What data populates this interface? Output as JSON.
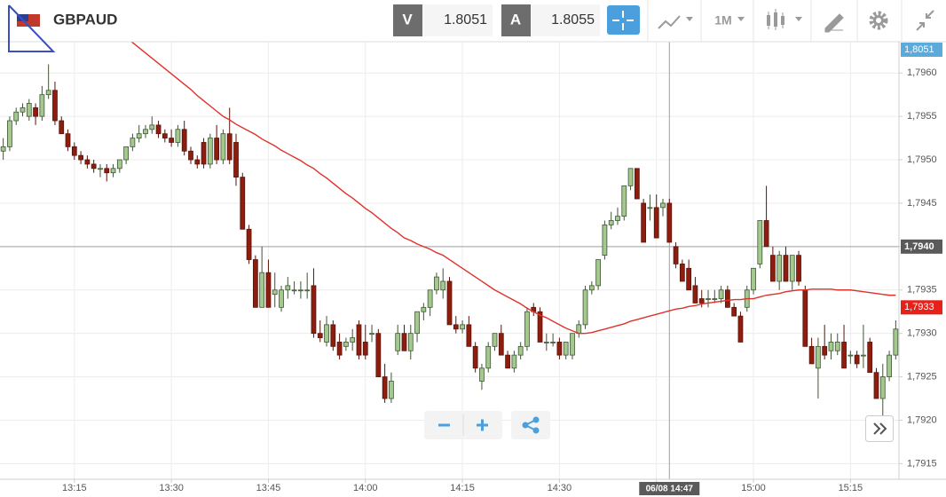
{
  "header": {
    "symbol": "GBPAUD",
    "bid_label": "V",
    "bid": "1.8051",
    "ask_label": "A",
    "ask": "1.8055",
    "timeframe": "1M"
  },
  "chart_data": {
    "type": "candlestick",
    "up_color": "#a3c98f",
    "down_color": "#8c1d0f",
    "grid": true,
    "xlim": [
      -0.5,
      138.5
    ],
    "xticks": [
      {
        "value": 11,
        "label": "13:15"
      },
      {
        "value": 26,
        "label": "13:30"
      },
      {
        "value": 41,
        "label": "13:45"
      },
      {
        "value": 56,
        "label": "14:00"
      },
      {
        "value": 71,
        "label": "14:15"
      },
      {
        "value": 86,
        "label": "14:30"
      },
      {
        "value": 101,
        "label": "14:45"
      },
      {
        "value": 116,
        "label": "15:00"
      },
      {
        "value": 131,
        "label": "15:15"
      }
    ],
    "ylim": [
      1.79132,
      1.79636
    ],
    "yticks": [
      {
        "value": 1.7915,
        "label": "1,7915"
      },
      {
        "value": 1.792,
        "label": "1,7920"
      },
      {
        "value": 1.7925,
        "label": "1,7925"
      },
      {
        "value": 1.793,
        "label": "1,7930"
      },
      {
        "value": 1.7935,
        "label": "1,7935"
      },
      {
        "value": 1.794,
        "label": "1,7940"
      },
      {
        "value": 1.7945,
        "label": "1,7945"
      },
      {
        "value": 1.795,
        "label": "1,7950"
      },
      {
        "value": 1.7955,
        "label": "1,7955"
      },
      {
        "value": 1.796,
        "label": "1,7960"
      }
    ],
    "ohlc": [
      [
        1.7951,
        1.79525,
        1.795,
        1.79515
      ],
      [
        1.79515,
        1.7955,
        1.7951,
        1.79545
      ],
      [
        1.79545,
        1.7956,
        1.7954,
        1.79555
      ],
      [
        1.79555,
        1.79565,
        1.7955,
        1.7956
      ],
      [
        1.7955,
        1.7957,
        1.79545,
        1.79565
      ],
      [
        1.7956,
        1.79565,
        1.7954,
        1.7955
      ],
      [
        1.7955,
        1.79585,
        1.79545,
        1.79575
      ],
      [
        1.79575,
        1.7961,
        1.7957,
        1.7958
      ],
      [
        1.7958,
        1.7959,
        1.7954,
        1.79545
      ],
      [
        1.79545,
        1.7955,
        1.7953,
        1.7953
      ],
      [
        1.7953,
        1.79535,
        1.7951,
        1.79515
      ],
      [
        1.79515,
        1.7952,
        1.795,
        1.79505
      ],
      [
        1.79505,
        1.7951,
        1.79495,
        1.795
      ],
      [
        1.795,
        1.79505,
        1.7949,
        1.79495
      ],
      [
        1.79495,
        1.795,
        1.79485,
        1.7949
      ],
      [
        1.7949,
        1.79495,
        1.7948,
        1.7949
      ],
      [
        1.7949,
        1.79495,
        1.79475,
        1.79485
      ],
      [
        1.79485,
        1.79495,
        1.7948,
        1.7949
      ],
      [
        1.7949,
        1.795,
        1.79485,
        1.795
      ],
      [
        1.795,
        1.79515,
        1.79495,
        1.79515
      ],
      [
        1.79515,
        1.7953,
        1.7951,
        1.79525
      ],
      [
        1.79525,
        1.7954,
        1.7952,
        1.7953
      ],
      [
        1.7953,
        1.7954,
        1.79525,
        1.79535
      ],
      [
        1.79535,
        1.7955,
        1.7953,
        1.7954
      ],
      [
        1.7954,
        1.79545,
        1.79525,
        1.7953
      ],
      [
        1.7953,
        1.79535,
        1.7952,
        1.79525
      ],
      [
        1.79525,
        1.79535,
        1.79515,
        1.7952
      ],
      [
        1.7952,
        1.7954,
        1.79515,
        1.79535
      ],
      [
        1.79535,
        1.79545,
        1.79505,
        1.7951
      ],
      [
        1.7951,
        1.79515,
        1.79495,
        1.795
      ],
      [
        1.795,
        1.79505,
        1.7949,
        1.79495
      ],
      [
        1.7952,
        1.79525,
        1.7949,
        1.79495
      ],
      [
        1.79495,
        1.7953,
        1.7949,
        1.79525
      ],
      [
        1.79525,
        1.7954,
        1.79495,
        1.795
      ],
      [
        1.795,
        1.79535,
        1.79495,
        1.7953
      ],
      [
        1.7953,
        1.7956,
        1.79495,
        1.795
      ],
      [
        1.7952,
        1.7953,
        1.7947,
        1.7948
      ],
      [
        1.7948,
        1.79485,
        1.7942,
        1.7942
      ],
      [
        1.7942,
        1.79425,
        1.7938,
        1.79385
      ],
      [
        1.79385,
        1.7939,
        1.7933,
        1.7933
      ],
      [
        1.7933,
        1.794,
        1.7933,
        1.7937
      ],
      [
        1.7937,
        1.79385,
        1.7933,
        1.7933
      ],
      [
        1.79345,
        1.7937,
        1.7933,
        1.7935
      ],
      [
        1.7933,
        1.79355,
        1.79325,
        1.7935
      ],
      [
        1.7935,
        1.79365,
        1.7934,
        1.79355
      ],
      [
        1.7935,
        1.7936,
        1.79345,
        1.7935
      ],
      [
        1.7935,
        1.7936,
        1.7934,
        1.7935
      ],
      [
        1.7935,
        1.7937,
        1.7934,
        1.7935
      ],
      [
        1.79355,
        1.79375,
        1.79295,
        1.793
      ],
      [
        1.793,
        1.79315,
        1.7929,
        1.79295
      ],
      [
        1.7929,
        1.7932,
        1.79285,
        1.7931
      ],
      [
        1.7931,
        1.79315,
        1.7928,
        1.79285
      ],
      [
        1.7929,
        1.793,
        1.7927,
        1.79275
      ],
      [
        1.79285,
        1.79295,
        1.7928,
        1.7929
      ],
      [
        1.7929,
        1.79305,
        1.7928,
        1.79295
      ],
      [
        1.7931,
        1.79315,
        1.7927,
        1.79275
      ],
      [
        1.7929,
        1.7931,
        1.7927,
        1.79275
      ],
      [
        1.793,
        1.7931,
        1.7929,
        1.793
      ],
      [
        1.793,
        1.79305,
        1.7925,
        1.7925
      ],
      [
        1.7925,
        1.79265,
        1.7922,
        1.79225
      ],
      [
        1.79225,
        1.79255,
        1.7922,
        1.79245
      ],
      [
        1.7928,
        1.7931,
        1.79275,
        1.793
      ],
      [
        1.793,
        1.7931,
        1.7928,
        1.7928
      ],
      [
        1.7928,
        1.7931,
        1.7927,
        1.793
      ],
      [
        1.793,
        1.79325,
        1.7929,
        1.79325
      ],
      [
        1.79325,
        1.79335,
        1.79315,
        1.7933
      ],
      [
        1.7933,
        1.7935,
        1.7932,
        1.7935
      ],
      [
        1.7935,
        1.7937,
        1.79345,
        1.79365
      ],
      [
        1.7935,
        1.79375,
        1.7934,
        1.7936
      ],
      [
        1.7936,
        1.79365,
        1.7931,
        1.7931
      ],
      [
        1.7931,
        1.7932,
        1.793,
        1.79305
      ],
      [
        1.79305,
        1.79315,
        1.793,
        1.7931
      ],
      [
        1.7931,
        1.7932,
        1.79285,
        1.79285
      ],
      [
        1.79285,
        1.7929,
        1.79255,
        1.7926
      ],
      [
        1.79245,
        1.79265,
        1.79235,
        1.7926
      ],
      [
        1.7926,
        1.7929,
        1.79255,
        1.79285
      ],
      [
        1.79285,
        1.793,
        1.7928,
        1.793
      ],
      [
        1.793,
        1.7931,
        1.79275,
        1.79275
      ],
      [
        1.79275,
        1.7928,
        1.7926,
        1.7926
      ],
      [
        1.7926,
        1.7928,
        1.79255,
        1.79275
      ],
      [
        1.79275,
        1.7929,
        1.7927,
        1.79285
      ],
      [
        1.79285,
        1.7933,
        1.7928,
        1.79325
      ],
      [
        1.7933,
        1.79335,
        1.7932,
        1.79325
      ],
      [
        1.79325,
        1.7933,
        1.7929,
        1.7929
      ],
      [
        1.7929,
        1.793,
        1.7928,
        1.7929
      ],
      [
        1.7929,
        1.793,
        1.79285,
        1.7929
      ],
      [
        1.7929,
        1.79295,
        1.7927,
        1.79275
      ],
      [
        1.79275,
        1.7929,
        1.7927,
        1.7929
      ],
      [
        1.79275,
        1.793,
        1.7927,
        1.793
      ],
      [
        1.793,
        1.79315,
        1.79295,
        1.7931
      ],
      [
        1.7931,
        1.79355,
        1.79305,
        1.7935
      ],
      [
        1.7935,
        1.7936,
        1.79345,
        1.79355
      ],
      [
        1.79355,
        1.79385,
        1.7935,
        1.79385
      ],
      [
        1.7939,
        1.7943,
        1.79385,
        1.79425
      ],
      [
        1.79425,
        1.7944,
        1.7942,
        1.7943
      ],
      [
        1.7943,
        1.79445,
        1.79425,
        1.79435
      ],
      [
        1.79435,
        1.7947,
        1.7943,
        1.7947
      ],
      [
        1.7947,
        1.7949,
        1.79465,
        1.7949
      ],
      [
        1.7949,
        1.7949,
        1.79455,
        1.79455
      ],
      [
        1.7945,
        1.79455,
        1.79405,
        1.79405
      ],
      [
        1.79445,
        1.7946,
        1.7943,
        1.79445
      ],
      [
        1.79445,
        1.7946,
        1.7941,
        1.7941
      ],
      [
        1.79445,
        1.79455,
        1.79435,
        1.7945
      ],
      [
        1.7945,
        1.79455,
        1.79405,
        1.79405
      ],
      [
        1.794,
        1.79405,
        1.79375,
        1.7938
      ],
      [
        1.7938,
        1.79385,
        1.7936,
        1.7936
      ],
      [
        1.79375,
        1.79385,
        1.7935,
        1.7935
      ],
      [
        1.79355,
        1.79365,
        1.79335,
        1.79335
      ],
      [
        1.7934,
        1.7935,
        1.7933,
        1.79335
      ],
      [
        1.7934,
        1.7935,
        1.7933,
        1.7934
      ],
      [
        1.7934,
        1.7935,
        1.79335,
        1.7934
      ],
      [
        1.7934,
        1.79355,
        1.79335,
        1.7935
      ],
      [
        1.7935,
        1.79355,
        1.7933,
        1.7933
      ],
      [
        1.7933,
        1.79335,
        1.7932,
        1.7932
      ],
      [
        1.7932,
        1.79325,
        1.7929,
        1.7929
      ],
      [
        1.7933,
        1.79355,
        1.79325,
        1.7935
      ],
      [
        1.7935,
        1.79375,
        1.79345,
        1.79375
      ],
      [
        1.7938,
        1.7943,
        1.79375,
        1.7943
      ],
      [
        1.7943,
        1.7947,
        1.794,
        1.794
      ],
      [
        1.7939,
        1.794,
        1.7936,
        1.7936
      ],
      [
        1.7936,
        1.79395,
        1.7935,
        1.7939
      ],
      [
        1.7939,
        1.794,
        1.7936,
        1.7936
      ],
      [
        1.7936,
        1.7939,
        1.7935,
        1.7939
      ],
      [
        1.7939,
        1.79395,
        1.79355,
        1.7936
      ],
      [
        1.7935,
        1.79355,
        1.79285,
        1.79285
      ],
      [
        1.79285,
        1.79295,
        1.79265,
        1.79265
      ],
      [
        1.7926,
        1.79295,
        1.79225,
        1.79285
      ],
      [
        1.79285,
        1.7931,
        1.7927,
        1.79275
      ],
      [
        1.7928,
        1.793,
        1.7927,
        1.7929
      ],
      [
        1.7928,
        1.793,
        1.79275,
        1.7929
      ],
      [
        1.7929,
        1.7931,
        1.7926,
        1.7926
      ],
      [
        1.79275,
        1.7928,
        1.79265,
        1.79275
      ],
      [
        1.79275,
        1.7928,
        1.7926,
        1.79265
      ],
      [
        1.79275,
        1.7931,
        1.7926,
        1.79275
      ],
      [
        1.7929,
        1.79295,
        1.79255,
        1.79255
      ],
      [
        1.79255,
        1.7926,
        1.79225,
        1.79225
      ],
      [
        1.79225,
        1.79265,
        1.7919,
        1.7925
      ],
      [
        1.7925,
        1.7928,
        1.79245,
        1.79275
      ],
      [
        1.79275,
        1.79315,
        1.7927,
        1.79305
      ]
    ],
    "moving_average": {
      "color": "#e0312a",
      "values": [
        null,
        null,
        null,
        null,
        null,
        null,
        null,
        null,
        null,
        null,
        null,
        null,
        null,
        null,
        null,
        null,
        null,
        null,
        null,
        1.7964,
        1.79635,
        1.79629,
        1.79623,
        1.79617,
        1.79611,
        1.79605,
        1.79599,
        1.79593,
        1.79587,
        1.79581,
        1.79574,
        1.79568,
        1.79562,
        1.79556,
        1.7955,
        1.79546,
        1.79541,
        1.79537,
        1.79533,
        1.79529,
        1.79524,
        1.7952,
        1.79516,
        1.79511,
        1.79507,
        1.79503,
        1.79499,
        1.79494,
        1.7949,
        1.79484,
        1.79479,
        1.79473,
        1.79467,
        1.79461,
        1.79456,
        1.7945,
        1.79444,
        1.79439,
        1.79433,
        1.79427,
        1.79421,
        1.79416,
        1.7941,
        1.79407,
        1.79403,
        1.794,
        1.79397,
        1.79393,
        1.7939,
        1.79385,
        1.7938,
        1.79375,
        1.7937,
        1.79365,
        1.7936,
        1.79355,
        1.7935,
        1.79346,
        1.79342,
        1.79338,
        1.79334,
        1.79329,
        1.79325,
        1.79321,
        1.79318,
        1.79314,
        1.7931,
        1.79306,
        1.79303,
        1.793,
        1.793,
        1.79301,
        1.79303,
        1.79305,
        1.79307,
        1.79309,
        1.79311,
        1.79314,
        1.79316,
        1.79318,
        1.7932,
        1.79322,
        1.79324,
        1.79326,
        1.79328,
        1.79329,
        1.79331,
        1.79332,
        1.79334,
        1.79335,
        1.79336,
        1.79337,
        1.79338,
        1.79339,
        1.79339,
        1.7934,
        1.7934,
        1.79342,
        1.79344,
        1.79345,
        1.79346,
        1.79348,
        1.79349,
        1.7935,
        1.7935,
        1.79351,
        1.79351,
        1.79351,
        1.79351,
        1.7935,
        1.7935,
        1.7935,
        1.79349,
        1.79348,
        1.79347,
        1.79346,
        1.79345,
        1.79344,
        1.79344
      ]
    },
    "price_labels": [
      {
        "value": 1.8051,
        "label": "1,8051",
        "color": "#5aabdc"
      },
      {
        "value": 1.7933,
        "label": "1,7933",
        "color": "#e8201a"
      }
    ],
    "crosshair": {
      "x": 103,
      "y": {
        "value": 1.794,
        "label": "1,7940"
      },
      "x_label": "06/08 14:47"
    }
  }
}
